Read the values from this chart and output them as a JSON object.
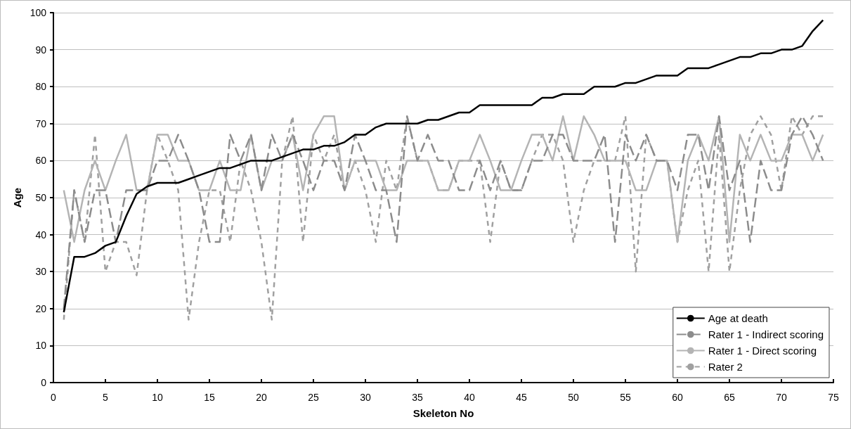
{
  "chart_data": {
    "type": "line",
    "xlabel": "Skeleton No",
    "ylabel": "Age",
    "x": [
      1,
      2,
      3,
      4,
      5,
      6,
      7,
      8,
      9,
      10,
      11,
      12,
      13,
      14,
      15,
      16,
      17,
      18,
      19,
      20,
      21,
      22,
      23,
      24,
      25,
      26,
      27,
      28,
      29,
      30,
      31,
      32,
      33,
      34,
      35,
      36,
      37,
      38,
      39,
      40,
      41,
      42,
      43,
      44,
      45,
      46,
      47,
      48,
      49,
      50,
      51,
      52,
      53,
      54,
      55,
      56,
      57,
      58,
      59,
      60,
      61,
      62,
      63,
      64,
      65,
      66,
      67,
      68,
      69,
      70,
      71,
      72,
      73,
      74
    ],
    "series": [
      {
        "name": "Age at death",
        "color": "#000000",
        "line_style": "solid",
        "values": [
          19,
          34,
          34,
          35,
          37,
          38,
          45,
          51,
          53,
          54,
          54,
          54,
          55,
          56,
          57,
          58,
          58,
          59,
          60,
          60,
          60,
          61,
          62,
          63,
          63,
          64,
          64,
          65,
          67,
          67,
          69,
          70,
          70,
          70,
          70,
          71,
          71,
          72,
          73,
          73,
          75,
          75,
          75,
          75,
          75,
          75,
          77,
          77,
          78,
          78,
          78,
          80,
          80,
          80,
          81,
          81,
          82,
          83,
          83,
          83,
          85,
          85,
          85,
          86,
          87,
          88,
          88,
          89,
          89,
          90,
          90,
          91,
          95,
          98
        ]
      },
      {
        "name": "Rater 1 - Indirect scoring",
        "color": "#8c8c8c",
        "line_style": "dashed",
        "values": [
          20,
          52,
          38,
          52,
          52,
          38,
          52,
          52,
          52,
          60,
          60,
          67,
          60,
          52,
          38,
          38,
          67,
          60,
          67,
          52,
          67,
          60,
          67,
          60,
          52,
          60,
          60,
          52,
          67,
          60,
          52,
          52,
          38,
          72,
          60,
          67,
          60,
          60,
          52,
          52,
          60,
          52,
          60,
          52,
          52,
          60,
          60,
          67,
          67,
          60,
          60,
          60,
          67,
          38,
          67,
          60,
          67,
          60,
          60,
          52,
          67,
          67,
          52,
          72,
          52,
          60,
          38,
          60,
          52,
          52,
          67,
          72,
          67,
          60
        ]
      },
      {
        "name": "Rater 1 - Direct scoring",
        "color": "#b4b4b4",
        "line_style": "solid",
        "values": [
          52,
          38,
          52,
          60,
          52,
          60,
          67,
          52,
          52,
          67,
          67,
          60,
          60,
          52,
          52,
          60,
          52,
          52,
          67,
          52,
          60,
          60,
          67,
          52,
          67,
          72,
          72,
          52,
          60,
          60,
          60,
          52,
          52,
          60,
          60,
          60,
          52,
          52,
          60,
          60,
          67,
          60,
          52,
          52,
          60,
          67,
          67,
          60,
          72,
          60,
          72,
          67,
          60,
          60,
          60,
          52,
          52,
          60,
          60,
          38,
          60,
          67,
          60,
          72,
          38,
          67,
          60,
          67,
          60,
          60,
          67,
          67,
          60,
          67
        ]
      },
      {
        "name": "Rater 2",
        "color": "#a0a0a0",
        "line_style": "dotted",
        "values": [
          17,
          52,
          38,
          67,
          30,
          38,
          38,
          29,
          52,
          67,
          60,
          52,
          17,
          38,
          52,
          52,
          38,
          60,
          52,
          38,
          17,
          60,
          72,
          38,
          67,
          60,
          67,
          52,
          60,
          52,
          38,
          60,
          52,
          72,
          60,
          60,
          52,
          52,
          60,
          60,
          60,
          38,
          60,
          52,
          52,
          60,
          67,
          67,
          60,
          38,
          52,
          60,
          60,
          60,
          72,
          30,
          67,
          60,
          60,
          38,
          52,
          60,
          30,
          67,
          30,
          52,
          67,
          72,
          67,
          52,
          72,
          67,
          72,
          72
        ]
      }
    ],
    "xlim": [
      0,
      75
    ],
    "xticks": [
      0,
      5,
      10,
      15,
      20,
      25,
      30,
      35,
      40,
      45,
      50,
      55,
      60,
      65,
      70,
      75
    ],
    "ylim": [
      0,
      100
    ],
    "yticks": [
      0,
      10,
      20,
      30,
      40,
      50,
      60,
      70,
      80,
      90,
      100
    ],
    "grid": "y",
    "legend": "bottom right",
    "marker": "none"
  }
}
